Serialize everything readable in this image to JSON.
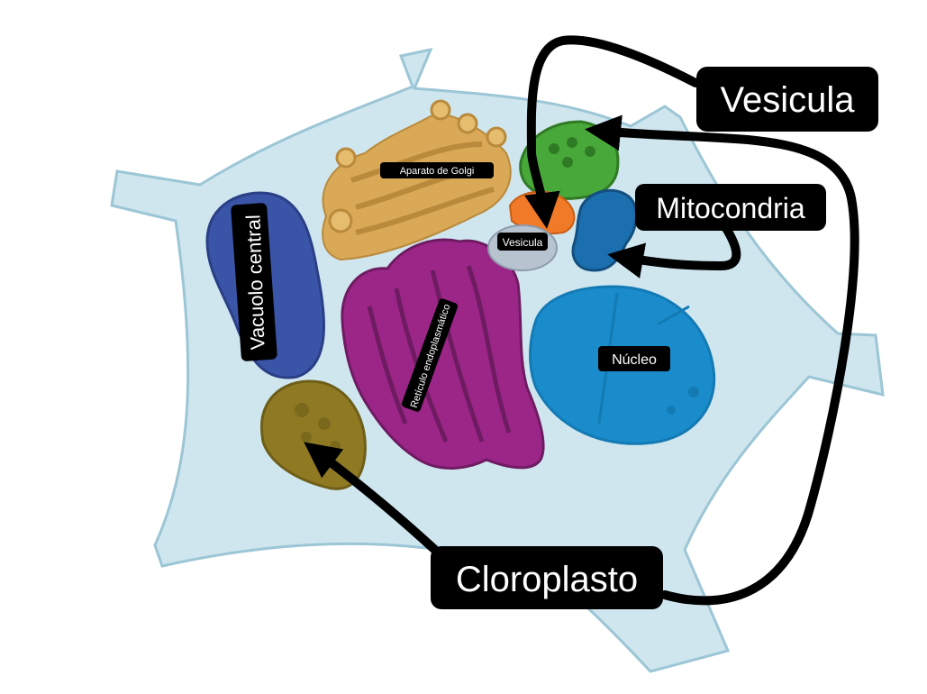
{
  "labels": {
    "golgi": "Aparato de Golgi",
    "vacuole": "Vacuolo central",
    "vesicle_small": "Vesicula",
    "er": "Retículo endoplasmático",
    "nucleus": "Núcleo",
    "vesicle_big": "Vesicula",
    "mitochondria": "Mitocondria",
    "chloroplast": "Cloroplasto"
  },
  "colors": {
    "background": "#ffffff",
    "cell": "#cfe6ef",
    "cell_edge": "#9cc6d6",
    "golgi": "#d9a957",
    "vacuole": "#3a55a8",
    "er": "#9c2688",
    "nucleus": "#1a8ccb",
    "chloroplast": "#8f7a23",
    "vesicle_green": "#49a83a",
    "vesicle_orange": "#f07a28",
    "vesicle_gray": "#b7c4d0",
    "mitochondria": "#1c6fae",
    "annotation": "#000000"
  }
}
